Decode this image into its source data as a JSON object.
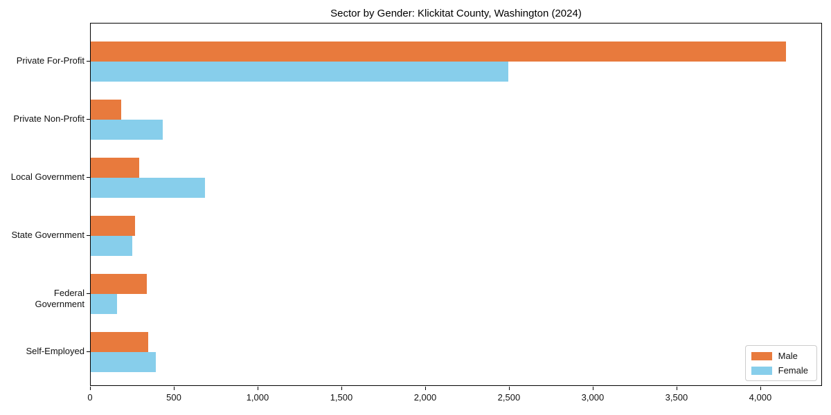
{
  "title": "Sector by Gender: Klickitat County, Washington (2024)",
  "chart_data": {
    "type": "bar",
    "orientation": "horizontal",
    "title": "Sector by Gender: Klickitat County, Washington (2024)",
    "categories": [
      "Private For-Profit",
      "Private Non-Profit",
      "Local Government",
      "State Government",
      "Federal Government",
      "Self-Employed"
    ],
    "series": [
      {
        "name": "Male",
        "color": "#e87a3d",
        "values": [
          4150,
          180,
          290,
          265,
          335,
          345
        ]
      },
      {
        "name": "Female",
        "color": "#87ceeb",
        "values": [
          2490,
          430,
          680,
          250,
          155,
          390
        ]
      }
    ],
    "xlabel": "",
    "ylabel": "",
    "xlim": [
      0,
      4368
    ],
    "xticks": [
      0,
      500,
      1000,
      1500,
      2000,
      2500,
      3000,
      3500,
      4000
    ],
    "xtick_labels": [
      "0",
      "500",
      "1,000",
      "1,500",
      "2,000",
      "2,500",
      "3,000",
      "3,500",
      "4,000"
    ],
    "grid": false,
    "legend": {
      "position": "lower right",
      "entries": [
        "Male",
        "Female"
      ]
    }
  }
}
